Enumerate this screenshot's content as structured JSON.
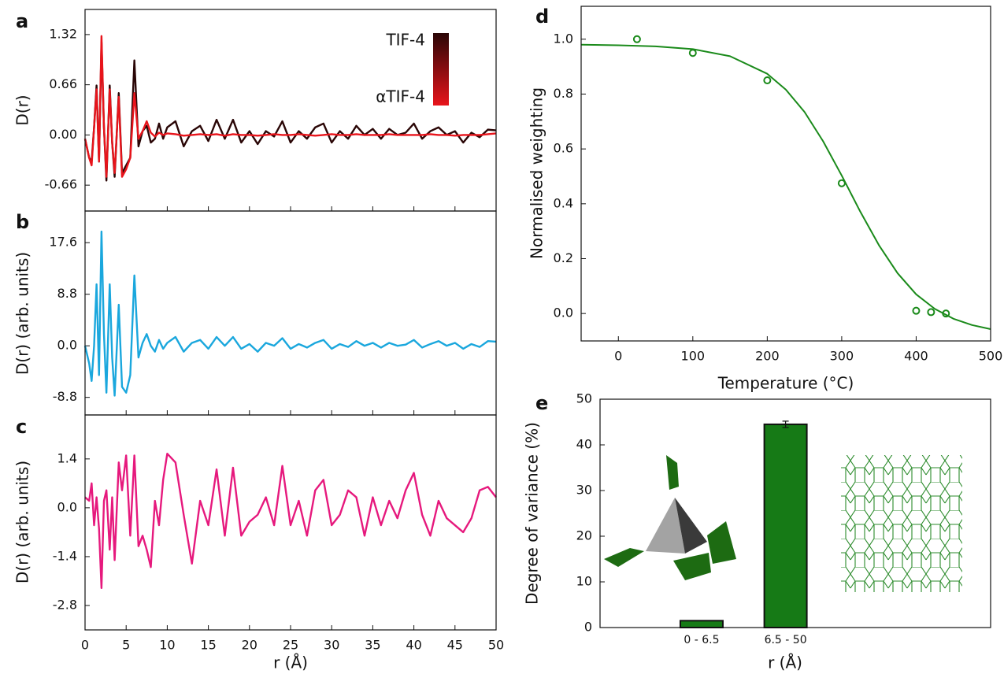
{
  "chart_data": [
    {
      "type": "line",
      "label": "a",
      "y_label": "D(r)",
      "xlim": [
        0,
        50
      ],
      "xticks": [
        0,
        5,
        10,
        15,
        20,
        25,
        30,
        35,
        40,
        45,
        50
      ],
      "ylim": [
        -1.0,
        1.65
      ],
      "yticks": [
        -0.66,
        {
          "value": 0,
          "label": "0.00"
        },
        0.66,
        1.32
      ],
      "x": [
        0,
        0.5,
        0.8,
        1.1,
        1.4,
        1.7,
        2.0,
        2.3,
        2.6,
        3.0,
        3.3,
        3.6,
        4.1,
        4.5,
        5.0,
        5.5,
        6.0,
        6.5,
        7.0,
        7.5,
        8.0,
        8.5,
        9.0,
        9.5,
        10,
        11,
        12,
        13,
        14,
        15,
        16,
        17,
        18,
        19,
        20,
        21,
        22,
        23,
        24,
        25,
        26,
        27,
        28,
        29,
        30,
        31,
        32,
        33,
        34,
        35,
        36,
        37,
        38,
        39,
        40,
        41,
        42,
        43,
        44,
        45,
        46,
        47,
        48,
        49,
        50
      ],
      "series": [
        {
          "name": "TIF-4",
          "color": "#2a0606",
          "values": [
            -0.05,
            -0.3,
            -0.35,
            0.1,
            0.65,
            -0.35,
            1.22,
            0.1,
            -0.6,
            0.65,
            -0.1,
            -0.55,
            0.55,
            -0.5,
            -0.4,
            -0.3,
            0.98,
            -0.15,
            0.05,
            0.12,
            -0.1,
            -0.05,
            0.15,
            -0.05,
            0.1,
            0.18,
            -0.15,
            0.05,
            0.12,
            -0.08,
            0.2,
            -0.05,
            0.2,
            -0.1,
            0.05,
            -0.12,
            0.05,
            -0.02,
            0.18,
            -0.1,
            0.05,
            -0.05,
            0.1,
            0.15,
            -0.1,
            0.05,
            -0.05,
            0.12,
            0,
            0.08,
            -0.05,
            0.08,
            0,
            0.03,
            0.15,
            -0.05,
            0.05,
            0.1,
            0,
            0.05,
            -0.1,
            0.03,
            -0.03,
            0.07,
            0.06
          ]
        },
        {
          "name": "αTIF-4",
          "color": "#e8141b",
          "values": [
            -0.05,
            -0.3,
            -0.4,
            0.1,
            0.6,
            -0.35,
            1.3,
            0.1,
            -0.55,
            0.6,
            -0.1,
            -0.5,
            0.5,
            -0.55,
            -0.45,
            -0.3,
            0.55,
            -0.05,
            0.05,
            0.18,
            0.03,
            -0.02,
            0.03,
            0,
            0.02,
            0.01,
            -0.01,
            0,
            0.01,
            0,
            0.01,
            -0.01,
            0.01,
            0,
            0,
            -0.01,
            0,
            0.01,
            0,
            0,
            0.01,
            0,
            -0.01,
            0,
            0.01,
            0,
            0,
            0.01,
            0,
            0,
            0,
            0.01,
            0,
            0,
            0,
            0,
            0.01,
            0,
            0,
            -0.01,
            0,
            0,
            0,
            0.01,
            0.02
          ]
        }
      ]
    },
    {
      "type": "line",
      "label": "b",
      "y_label": "D(r) (arb. units)",
      "xlim": [
        0,
        50
      ],
      "xticks": [
        0,
        5,
        10,
        15,
        20,
        25,
        30,
        35,
        40,
        45,
        50
      ],
      "ylim": [
        -11.8,
        23
      ],
      "yticks": [
        -8.8,
        {
          "value": 0,
          "label": "0.0"
        },
        8.8,
        17.6
      ],
      "x": [
        0,
        0.5,
        0.8,
        1.1,
        1.4,
        1.7,
        2.0,
        2.3,
        2.6,
        3.0,
        3.3,
        3.6,
        4.1,
        4.5,
        5.0,
        5.5,
        6.0,
        6.5,
        7.0,
        7.5,
        8.0,
        8.5,
        9.0,
        9.5,
        10,
        11,
        12,
        13,
        14,
        15,
        16,
        17,
        18,
        19,
        20,
        21,
        22,
        23,
        24,
        25,
        26,
        27,
        28,
        29,
        30,
        31,
        32,
        33,
        34,
        35,
        36,
        37,
        38,
        39,
        40,
        41,
        42,
        43,
        44,
        45,
        46,
        47,
        48,
        49,
        50
      ],
      "series": [
        {
          "color": "#1aa7dd",
          "values": [
            0,
            -3,
            -6,
            0,
            10.5,
            -5,
            19.5,
            2,
            -8,
            10.5,
            -2,
            -8.5,
            7,
            -7,
            -8,
            -5,
            12,
            -2,
            0.5,
            2,
            0,
            -1,
            1,
            -0.5,
            0.5,
            1.5,
            -1,
            0.5,
            1,
            -0.5,
            1.5,
            0,
            1.5,
            -0.5,
            0.3,
            -1,
            0.5,
            0,
            1.3,
            -0.5,
            0.3,
            -0.3,
            0.5,
            1,
            -0.5,
            0.3,
            -0.2,
            0.8,
            0,
            0.5,
            -0.3,
            0.5,
            0,
            0.2,
            1,
            -0.3,
            0.3,
            0.8,
            0,
            0.5,
            -0.5,
            0.3,
            -0.2,
            0.8,
            0.7
          ]
        }
      ]
    },
    {
      "type": "line",
      "label": "c",
      "y_label": "D(r) (arb. units)",
      "x_label": "r (Å)",
      "xlim": [
        0,
        50
      ],
      "xticks": [
        0,
        5,
        10,
        15,
        20,
        25,
        30,
        35,
        40,
        45,
        50
      ],
      "ylim": [
        -3.5,
        2.66
      ],
      "yticks": [
        -2.8,
        -1.4,
        {
          "value": 0,
          "label": "0.0"
        },
        1.4
      ],
      "x": [
        0,
        0.5,
        0.8,
        1.1,
        1.4,
        1.7,
        2.0,
        2.3,
        2.6,
        3.0,
        3.3,
        3.6,
        4.1,
        4.5,
        5.0,
        5.5,
        6.0,
        6.5,
        7.0,
        7.5,
        8.0,
        8.5,
        9.0,
        9.5,
        10,
        11,
        12,
        13,
        14,
        15,
        16,
        17,
        18,
        19,
        20,
        21,
        22,
        23,
        24,
        25,
        26,
        27,
        28,
        29,
        30,
        31,
        32,
        33,
        34,
        35,
        36,
        37,
        38,
        39,
        40,
        41,
        42,
        43,
        44,
        45,
        46,
        47,
        48,
        49,
        50
      ],
      "series": [
        {
          "color": "#e6197d",
          "values": [
            0.3,
            0.2,
            0.7,
            -0.5,
            0.3,
            -0.6,
            -2.3,
            0.2,
            0.5,
            -1.2,
            0.3,
            -1.5,
            1.3,
            0.5,
            1.5,
            -0.8,
            1.5,
            -1.1,
            -0.8,
            -1.2,
            -1.7,
            0.2,
            -0.5,
            0.8,
            1.55,
            1.3,
            -0.2,
            -1.6,
            0.2,
            -0.5,
            1.1,
            -0.8,
            1.15,
            -0.8,
            -0.4,
            -0.2,
            0.3,
            -0.5,
            1.2,
            -0.5,
            0.2,
            -0.8,
            0.5,
            0.8,
            -0.5,
            -0.2,
            0.5,
            0.3,
            -0.8,
            0.3,
            -0.5,
            0.2,
            -0.3,
            0.5,
            1,
            -0.2,
            -0.8,
            0.2,
            -0.3,
            -0.5,
            -0.7,
            -0.3,
            0.5,
            0.6,
            0.3
          ]
        }
      ]
    },
    {
      "type": "scatter",
      "label": "d",
      "x_label": "Temperature (°C)",
      "y_label": "Normalised weighting",
      "color": "#1a8a1a",
      "xlim": [
        -50,
        500
      ],
      "xticks": [
        0,
        100,
        200,
        300,
        400,
        500
      ],
      "ylim": [
        -0.1,
        1.12
      ],
      "yticks": [
        {
          "value": 0,
          "label": "0.0"
        },
        0.2,
        0.4,
        0.6,
        0.8,
        {
          "value": 1,
          "label": "1.0"
        }
      ],
      "x": [
        25,
        100,
        200,
        300,
        400,
        420,
        440
      ],
      "values": [
        1.0,
        0.95,
        0.85,
        0.475,
        0.01,
        0.005,
        0.0
      ],
      "fit": {
        "x": [
          -50,
          0,
          50,
          100,
          150,
          200,
          225,
          250,
          275,
          300,
          325,
          350,
          375,
          400,
          425,
          450,
          475,
          500
        ],
        "values": [
          0.98,
          0.978,
          0.974,
          0.964,
          0.938,
          0.874,
          0.816,
          0.735,
          0.628,
          0.503,
          0.371,
          0.249,
          0.147,
          0.07,
          0.017,
          -0.019,
          -0.042,
          -0.057
        ]
      }
    },
    {
      "type": "bar",
      "label": "e",
      "x_label": "r (Å)",
      "y_label": "Degree of variance (%)",
      "color": "#167a16",
      "categories": [
        "0 - 6.5",
        "6.5 - 50"
      ],
      "values": [
        1.5,
        44.5
      ],
      "errors": [
        null,
        0.7
      ],
      "ylim": [
        0,
        50
      ],
      "yticks": [
        0,
        10,
        20,
        30,
        40,
        50
      ]
    }
  ]
}
